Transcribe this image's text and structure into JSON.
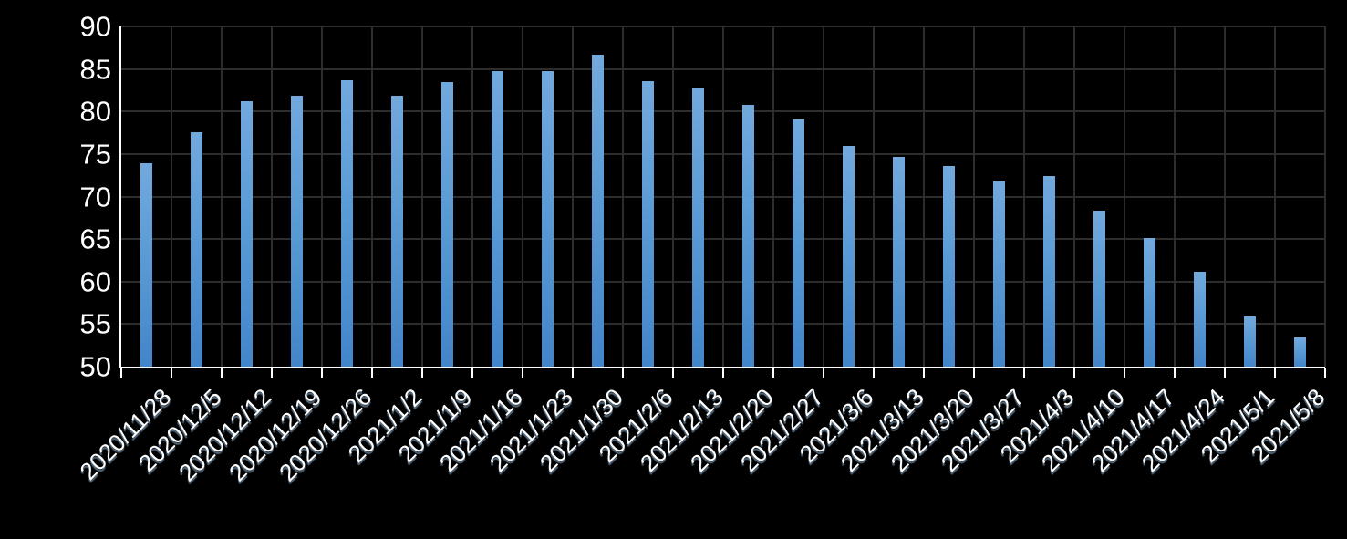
{
  "chart_data": {
    "type": "bar",
    "title": "",
    "xlabel": "",
    "ylabel": "",
    "categories": [
      "2020/11/28",
      "2020/12/5",
      "2020/12/12",
      "2020/12/19",
      "2020/12/26",
      "2021/1/2",
      "2021/1/9",
      "2021/1/16",
      "2021/1/23",
      "2021/1/30",
      "2021/2/6",
      "2021/2/13",
      "2021/2/20",
      "2021/2/27",
      "2021/3/6",
      "2021/3/13",
      "2021/3/20",
      "2021/3/27",
      "2021/4/3",
      "2021/4/10",
      "2021/4/17",
      "2021/4/24",
      "2021/5/1",
      "2021/5/8"
    ],
    "values": [
      73.9,
      77.6,
      81.2,
      81.9,
      83.7,
      81.9,
      83.5,
      84.8,
      84.8,
      86.7,
      83.6,
      82.8,
      80.8,
      79.1,
      75.9,
      74.7,
      73.6,
      71.8,
      72.4,
      68.3,
      65.1,
      61.2,
      55.9,
      53.4
    ],
    "ylim": [
      50,
      90
    ],
    "yticks": [
      90,
      85,
      80,
      75,
      70,
      65,
      60,
      55,
      50
    ],
    "grid": true,
    "legend": false,
    "colors": {
      "background": "#000000",
      "bar_top": "#72a9dd",
      "bar_base": "#5b9bd5",
      "bar_bottom": "#4285c9",
      "gridline": "#2d2d2d",
      "axis": "#ffffff",
      "tick_label": "#ffffff",
      "x_label_shadow": "#9dc3e6"
    }
  }
}
